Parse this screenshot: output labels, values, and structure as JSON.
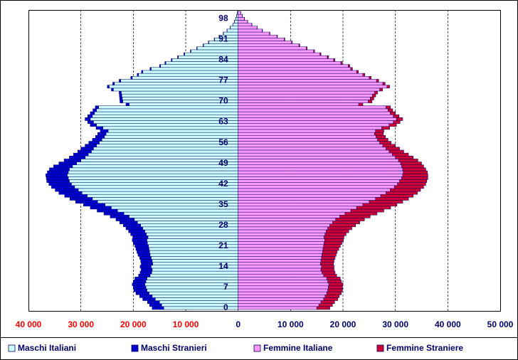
{
  "chart_data": {
    "type": "pyramid",
    "categories": [
      "0",
      null,
      null,
      null,
      null,
      null,
      null,
      "7",
      null,
      null,
      null,
      null,
      null,
      null,
      "14",
      null,
      null,
      null,
      null,
      null,
      null,
      "21",
      null,
      null,
      null,
      null,
      null,
      null,
      "28",
      null,
      null,
      null,
      null,
      null,
      null,
      "35",
      null,
      null,
      null,
      null,
      null,
      null,
      "42",
      null,
      null,
      null,
      null,
      null,
      null,
      "49",
      null,
      null,
      null,
      null,
      null,
      null,
      "56",
      null,
      null,
      null,
      null,
      null,
      null,
      "63",
      null,
      null,
      null,
      null,
      null,
      null,
      "70",
      null,
      null,
      null,
      null,
      null,
      null,
      "77",
      null,
      null,
      null,
      null,
      null,
      null,
      "84",
      null,
      null,
      null,
      null,
      null,
      null,
      "91",
      null,
      null,
      null,
      null,
      null,
      null,
      "98",
      null,
      null
    ],
    "series": [
      {
        "name": "Maschi Italiani",
        "color": "#ccffff",
        "side": "left",
        "values": [
          -14200,
          -14600,
          -15000,
          -15800,
          -16400,
          -17000,
          -17400,
          -17600,
          -17800,
          -17600,
          -17400,
          -16800,
          -16500,
          -16400,
          -16600,
          -16300,
          -16400,
          -16600,
          -16800,
          -16900,
          -17000,
          -17100,
          -17300,
          -17400,
          -17200,
          -17500,
          -17800,
          -18200,
          -18600,
          -19200,
          -19800,
          -20800,
          -21800,
          -23000,
          -24200,
          -25400,
          -26800,
          -27800,
          -28800,
          -29800,
          -30500,
          -31200,
          -31800,
          -32200,
          -32400,
          -32600,
          -32400,
          -32200,
          -31600,
          -30800,
          -30000,
          -29200,
          -28600,
          -28000,
          -27600,
          -27000,
          -26500,
          -26000,
          -25500,
          -25200,
          -24800,
          -25800,
          -27000,
          -27600,
          -28200,
          -27800,
          -27400,
          -27000,
          -26600,
          -20800,
          -22000,
          -22100,
          -22200,
          -22300,
          -23800,
          -24600,
          -23600,
          -22400,
          -20200,
          -19000,
          -18200,
          -16600,
          -14800,
          -13800,
          -12600,
          -11400,
          -10200,
          -9000,
          -7800,
          -6600,
          -5600,
          -4500,
          -3600,
          -2800,
          -2100,
          -1500,
          -1000,
          -700,
          -450,
          -280,
          -180
        ]
      },
      {
        "name": "Maschi Stranieri",
        "color": "#0000cc",
        "side": "left",
        "values": [
          -2200,
          -2300,
          -2300,
          -2400,
          -2400,
          -2500,
          -2500,
          -2400,
          -2400,
          -2400,
          -2300,
          -2200,
          -2200,
          -2100,
          -2100,
          -2200,
          -2200,
          -2200,
          -2300,
          -2400,
          -2500,
          -2600,
          -2700,
          -2800,
          -2900,
          -3000,
          -3100,
          -3200,
          -3300,
          -3400,
          -3500,
          -3600,
          -3800,
          -3900,
          -4000,
          -4100,
          -4200,
          -4300,
          -4300,
          -4400,
          -4400,
          -4400,
          -4300,
          -4300,
          -4200,
          -4100,
          -4000,
          -3800,
          -3600,
          -3400,
          -3200,
          -3000,
          -2800,
          -2600,
          -2400,
          -2200,
          -2000,
          -1800,
          -1700,
          -1600,
          -1500,
          -1300,
          -1200,
          -1100,
          -1000,
          -900,
          -800,
          -700,
          -650,
          -600,
          -550,
          -500,
          -450,
          -400,
          -380,
          -350,
          -320,
          -300,
          -280,
          -260,
          -240,
          -220,
          -200,
          -180,
          -160,
          -150,
          -140,
          -120,
          -100,
          -90,
          -80,
          -70,
          -60,
          -50,
          -40,
          -30,
          -25,
          -20,
          -15,
          -10,
          -5
        ]
      },
      {
        "name": "Femmine Italiane",
        "color": "#ff99ff",
        "values": [
          15000,
          15400,
          15800,
          16300,
          16600,
          16900,
          17100,
          17200,
          17300,
          17100,
          16900,
          16300,
          16000,
          15800,
          15900,
          15700,
          15800,
          15900,
          16000,
          16100,
          16200,
          16300,
          16400,
          16500,
          16400,
          16600,
          16800,
          17100,
          17500,
          18000,
          18600,
          19400,
          20400,
          21500,
          22600,
          23800,
          25000,
          26200,
          27200,
          28200,
          29000,
          29800,
          30400,
          30800,
          31200,
          31400,
          31500,
          31400,
          31200,
          31000,
          30600,
          30000,
          29400,
          28800,
          28200,
          27600,
          27000,
          26600,
          26300,
          26000,
          26200,
          27400,
          28800,
          29600,
          30200,
          29600,
          29000,
          28600,
          28200,
          23000,
          24800,
          25200,
          25600,
          26000,
          27000,
          28400,
          27600,
          26400,
          25000,
          23800,
          22600,
          21500,
          21000,
          19600,
          18200,
          17000,
          15600,
          14400,
          13000,
          11600,
          10200,
          8800,
          7400,
          6000,
          4600,
          3600,
          2600,
          1800,
          1200,
          800,
          500
        ]
      },
      {
        "name": "Femmine Straniere",
        "color": "#cc0033",
        "values": [
          2500,
          2600,
          2600,
          2700,
          2700,
          2800,
          2800,
          2700,
          2700,
          2600,
          2600,
          2500,
          2500,
          2500,
          2400,
          2500,
          2500,
          2600,
          2700,
          2800,
          3000,
          3200,
          3400,
          3600,
          3800,
          4000,
          4300,
          4600,
          4900,
          5200,
          5500,
          5800,
          6100,
          6300,
          6500,
          6500,
          6400,
          6300,
          6200,
          6000,
          5800,
          5600,
          5400,
          5200,
          5000,
          4800,
          4600,
          4400,
          4200,
          4000,
          3700,
          3400,
          3100,
          2800,
          2600,
          2400,
          2200,
          2000,
          1800,
          1700,
          1600,
          1500,
          1400,
          1300,
          1200,
          1100,
          1000,
          900,
          850,
          800,
          750,
          700,
          650,
          600,
          550,
          500,
          450,
          420,
          400,
          380,
          350,
          320,
          300,
          280,
          260,
          240,
          220,
          200,
          180,
          160,
          140,
          120,
          100,
          80,
          60,
          50,
          40,
          30,
          25,
          20,
          15
        ]
      }
    ],
    "xlim": [
      -40000,
      50000
    ],
    "xticks": [
      {
        "value": -40000,
        "label": "40 000"
      },
      {
        "value": -30000,
        "label": "30 000"
      },
      {
        "value": -20000,
        "label": "20 000"
      },
      {
        "value": -10000,
        "label": "10 000"
      },
      0,
      {
        "value": 10000,
        "label": "10 000"
      },
      {
        "value": 20000,
        "label": "20 000"
      },
      {
        "value": 30000,
        "label": "30 000"
      },
      {
        "value": 40000,
        "label": "40 000"
      },
      {
        "value": 50000,
        "label": "50 000"
      }
    ],
    "grid": true
  }
}
